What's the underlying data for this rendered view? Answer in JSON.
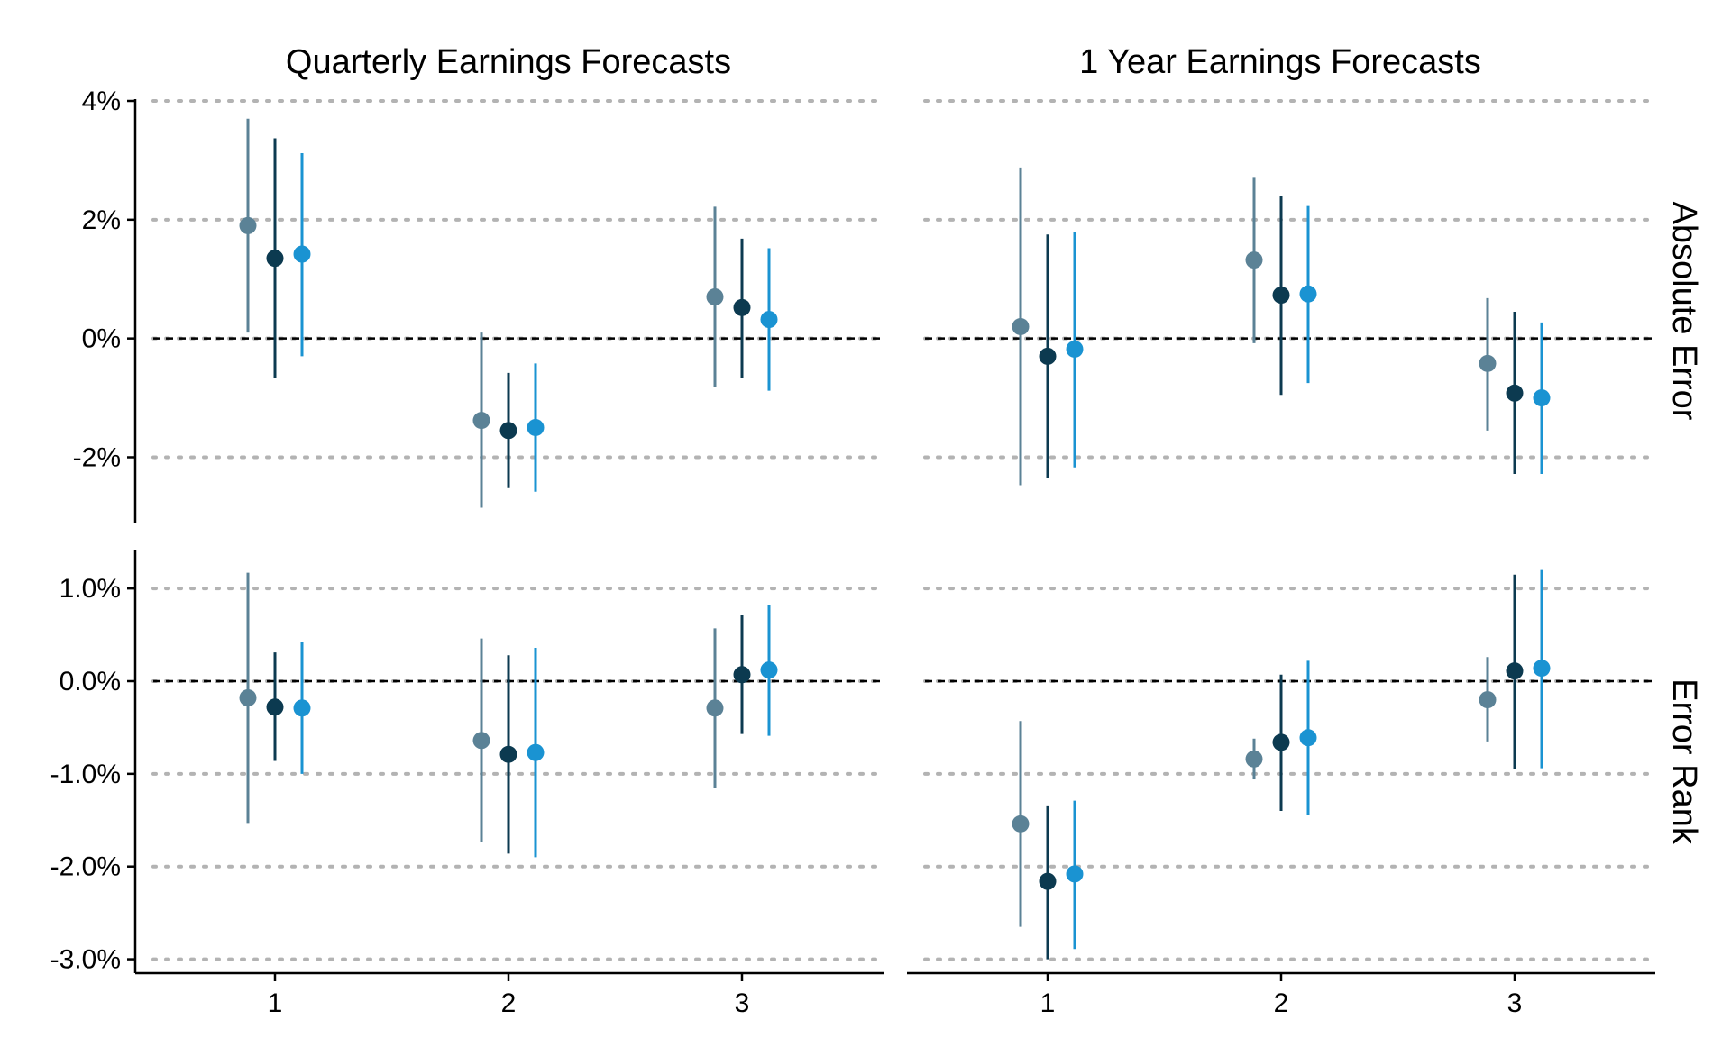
{
  "chart_data": {
    "type": "scatter",
    "subtype": "point-range (coefficient plot) small multiples",
    "columns": [
      "Quarterly Earnings Forecasts",
      "1 Year Earnings Forecasts"
    ],
    "rows": [
      "Absolute Error",
      "Error Rank"
    ],
    "x_categories": [
      "1",
      "2",
      "3"
    ],
    "reference_line": {
      "y": 0,
      "style": "dashed"
    },
    "grid": "horizontal dotted",
    "series_colors": [
      "#5b8296",
      "#0c3a50",
      "#1a93d2"
    ],
    "panels": [
      {
        "column": "Quarterly Earnings Forecasts",
        "row": "Absolute Error",
        "ylim": [
          -3.1,
          4.0
        ],
        "yticks": [
          {
            "v": 4,
            "label": "4%"
          },
          {
            "v": 2,
            "label": "2%"
          },
          {
            "v": 0,
            "label": "0%"
          },
          {
            "v": -2,
            "label": "-2%"
          }
        ],
        "series": [
          {
            "estimate": [
              1.9,
              -1.38,
              0.7
            ],
            "low": [
              0.1,
              -2.85,
              -0.82
            ],
            "high": [
              3.7,
              0.1,
              2.22
            ]
          },
          {
            "estimate": [
              1.35,
              -1.55,
              0.52
            ],
            "low": [
              -0.67,
              -2.52,
              -0.67
            ],
            "high": [
              3.37,
              -0.58,
              1.68
            ]
          },
          {
            "estimate": [
              1.42,
              -1.5,
              0.32
            ],
            "low": [
              -0.3,
              -2.58,
              -0.88
            ],
            "high": [
              3.12,
              -0.42,
              1.52
            ]
          }
        ]
      },
      {
        "column": "1 Year Earnings Forecasts",
        "row": "Absolute Error",
        "ylim": [
          -3.1,
          4.0
        ],
        "yticks": [
          {
            "v": 4,
            "label": "4%"
          },
          {
            "v": 2,
            "label": "2%"
          },
          {
            "v": 0,
            "label": "0%"
          },
          {
            "v": -2,
            "label": "-2%"
          }
        ],
        "series": [
          {
            "estimate": [
              0.2,
              1.32,
              -0.42
            ],
            "low": [
              -2.47,
              -0.08,
              -1.55
            ],
            "high": [
              2.88,
              2.72,
              0.68
            ]
          },
          {
            "estimate": [
              -0.3,
              0.73,
              -0.92
            ],
            "low": [
              -2.35,
              -0.95,
              -2.28
            ],
            "high": [
              1.75,
              2.4,
              0.45
            ]
          },
          {
            "estimate": [
              -0.18,
              0.75,
              -1.0
            ],
            "low": [
              -2.17,
              -0.75,
              -2.28
            ],
            "high": [
              1.8,
              2.23,
              0.27
            ]
          }
        ]
      },
      {
        "column": "Quarterly Earnings Forecasts",
        "row": "Error Rank",
        "ylim": [
          -3.15,
          1.4
        ],
        "yticks": [
          {
            "v": 1,
            "label": "1.0%"
          },
          {
            "v": 0,
            "label": "0.0%"
          },
          {
            "v": -1,
            "label": "-1.0%"
          },
          {
            "v": -2,
            "label": "-2.0%"
          },
          {
            "v": -3,
            "label": "-3.0%"
          }
        ],
        "series": [
          {
            "estimate": [
              -0.18,
              -0.64,
              -0.29
            ],
            "low": [
              -1.53,
              -1.74,
              -1.15
            ],
            "high": [
              1.17,
              0.46,
              0.57
            ]
          },
          {
            "estimate": [
              -0.28,
              -0.79,
              0.07
            ],
            "low": [
              -0.86,
              -1.86,
              -0.57
            ],
            "high": [
              0.31,
              0.28,
              0.71
            ]
          },
          {
            "estimate": [
              -0.29,
              -0.77,
              0.12
            ],
            "low": [
              -1.0,
              -1.9,
              -0.59
            ],
            "high": [
              0.42,
              0.36,
              0.82
            ]
          }
        ]
      },
      {
        "column": "1 Year Earnings Forecasts",
        "row": "Error Rank",
        "ylim": [
          -3.15,
          1.4
        ],
        "yticks": [
          {
            "v": 1,
            "label": "1.0%"
          },
          {
            "v": 0,
            "label": "0.0%"
          },
          {
            "v": -1,
            "label": "-1.0%"
          },
          {
            "v": -2,
            "label": "-2.0%"
          },
          {
            "v": -3,
            "label": "-3.0%"
          }
        ],
        "series": [
          {
            "estimate": [
              -1.54,
              -0.84,
              -0.2
            ],
            "low": [
              -2.65,
              -1.06,
              -0.65
            ],
            "high": [
              -0.43,
              -0.62,
              0.26
            ]
          },
          {
            "estimate": [
              -2.16,
              -0.66,
              0.11
            ],
            "low": [
              -3.0,
              -1.4,
              -0.95
            ],
            "high": [
              -1.34,
              0.07,
              1.15
            ]
          },
          {
            "estimate": [
              -2.08,
              -0.61,
              0.14
            ],
            "low": [
              -2.89,
              -1.44,
              -0.94
            ],
            "high": [
              -1.29,
              0.22,
              1.2
            ]
          }
        ]
      }
    ]
  }
}
